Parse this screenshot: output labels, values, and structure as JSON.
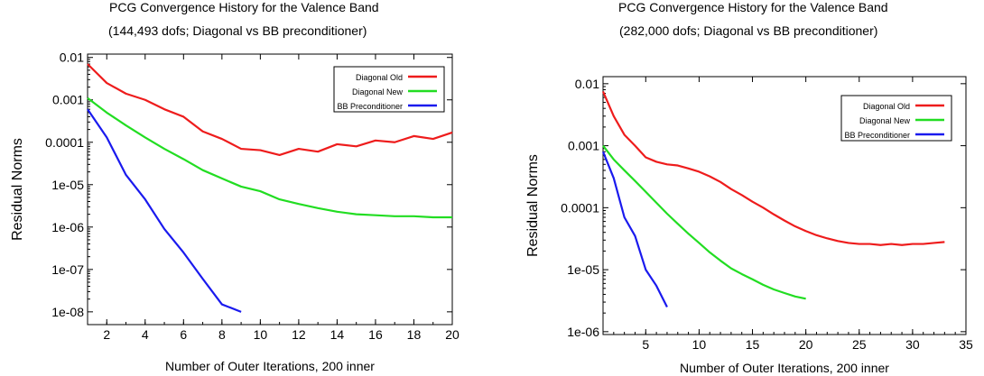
{
  "chart_data": [
    {
      "type": "line",
      "title": "PCG Convergence History for the Valence Band",
      "subtitle": "(144,493 dofs; Diagonal vs BB preconditioner)",
      "xlabel": "Number of Outer Iterations, 200 inner",
      "ylabel": "Residual Norms",
      "yscale": "log",
      "xlim": [
        1,
        20
      ],
      "ylim": [
        5e-09,
        0.012
      ],
      "grid": false,
      "legend_position": "top-right",
      "x_ticks": [
        2,
        4,
        6,
        8,
        10,
        12,
        14,
        16,
        18,
        20
      ],
      "x_tick_labels": [
        "2",
        "4",
        "6",
        "8",
        "10",
        "12",
        "14",
        "16",
        "18",
        "20"
      ],
      "y_ticks": [
        0.01,
        0.001,
        0.0001,
        1e-05,
        1e-06,
        1e-07,
        1e-08
      ],
      "y_tick_labels": [
        "0.01",
        "0.001",
        "0.0001",
        "1e-05",
        "1e-06",
        "1e-07",
        "1e-08"
      ],
      "series": [
        {
          "name": "Diagonal Old",
          "color": "#ee1c1c",
          "x": [
            1,
            2,
            3,
            4,
            5,
            6,
            7,
            8,
            9,
            10,
            11,
            12,
            13,
            14,
            15,
            16,
            17,
            18,
            19,
            20
          ],
          "y": [
            0.007,
            0.0025,
            0.0014,
            0.001,
            0.0006,
            0.0004,
            0.00018,
            0.00012,
            7e-05,
            6.5e-05,
            5e-05,
            7e-05,
            6e-05,
            9e-05,
            8e-05,
            0.00011,
            0.0001,
            0.00014,
            0.00012,
            0.00017
          ]
        },
        {
          "name": "Diagonal New",
          "color": "#22dd22",
          "x": [
            1,
            2,
            3,
            4,
            5,
            6,
            7,
            8,
            9,
            10,
            11,
            12,
            13,
            14,
            15,
            16,
            17,
            18,
            19,
            20
          ],
          "y": [
            0.0011,
            0.0005,
            0.00025,
            0.00013,
            7e-05,
            4e-05,
            2.2e-05,
            1.4e-05,
            9e-06,
            7e-06,
            4.5e-06,
            3.5e-06,
            2.8e-06,
            2.3e-06,
            2e-06,
            1.9e-06,
            1.8e-06,
            1.8e-06,
            1.7e-06,
            1.7e-06
          ]
        },
        {
          "name": "BB Preconditioner",
          "color": "#1a1aee",
          "x": [
            1,
            2,
            3,
            4,
            5,
            6,
            7,
            8,
            9
          ],
          "y": [
            0.0006,
            0.00013,
            1.7e-05,
            4.5e-06,
            9e-07,
            2.5e-07,
            6e-08,
            1.5e-08,
            1e-08
          ]
        }
      ]
    },
    {
      "type": "line",
      "title": "PCG Convergence History for the Valence Band",
      "subtitle": "(282,000 dofs; Diagonal vs BB preconditioner)",
      "xlabel": "Number of Outer Iterations, 200 inner",
      "ylabel": "Residual Norms",
      "yscale": "log",
      "xlim": [
        1,
        35
      ],
      "ylim": [
        9e-07,
        0.013
      ],
      "grid": false,
      "legend_position": "top-right",
      "x_ticks": [
        5,
        10,
        15,
        20,
        25,
        30,
        35
      ],
      "x_tick_labels": [
        "5",
        "10",
        "15",
        "20",
        "25",
        "30",
        "35"
      ],
      "y_ticks": [
        0.01,
        0.001,
        0.0001,
        1e-05,
        1e-06
      ],
      "y_tick_labels": [
        "0.01",
        "0.001",
        "0.0001",
        "1e-05",
        "1e-06"
      ],
      "series": [
        {
          "name": "Diagonal Old",
          "color": "#ee1c1c",
          "x": [
            1,
            2,
            3,
            4,
            5,
            6,
            7,
            8,
            9,
            10,
            11,
            12,
            13,
            14,
            15,
            16,
            17,
            18,
            19,
            20,
            21,
            22,
            23,
            24,
            25,
            26,
            27,
            28,
            29,
            30,
            31,
            32,
            33
          ],
          "y": [
            0.0075,
            0.003,
            0.0015,
            0.001,
            0.00065,
            0.00055,
            0.0005,
            0.00048,
            0.00043,
            0.00038,
            0.00032,
            0.00026,
            0.0002,
            0.00016,
            0.000125,
            0.0001,
            7.8e-05,
            6.2e-05,
            5e-05,
            4.2e-05,
            3.6e-05,
            3.2e-05,
            2.9e-05,
            2.7e-05,
            2.6e-05,
            2.6e-05,
            2.5e-05,
            2.6e-05,
            2.5e-05,
            2.6e-05,
            2.6e-05,
            2.7e-05,
            2.8e-05
          ]
        },
        {
          "name": "Diagonal New",
          "color": "#22dd22",
          "x": [
            1,
            2,
            3,
            4,
            5,
            6,
            7,
            8,
            9,
            10,
            11,
            12,
            13,
            14,
            15,
            16,
            17,
            18,
            19,
            20
          ],
          "y": [
            0.001,
            0.0006,
            0.0004,
            0.00027,
            0.00018,
            0.00012,
            8e-05,
            5.5e-05,
            3.8e-05,
            2.7e-05,
            1.9e-05,
            1.4e-05,
            1.05e-05,
            8.5e-06,
            7e-06,
            5.7e-06,
            4.8e-06,
            4.2e-06,
            3.7e-06,
            3.4e-06
          ]
        },
        {
          "name": "BB Preconditioner",
          "color": "#1a1aee",
          "x": [
            1,
            2,
            3,
            4,
            5,
            6,
            7
          ],
          "y": [
            0.0008,
            0.0003,
            7e-05,
            3.5e-05,
            1e-05,
            5.5e-06,
            2.5e-06
          ]
        }
      ]
    }
  ]
}
